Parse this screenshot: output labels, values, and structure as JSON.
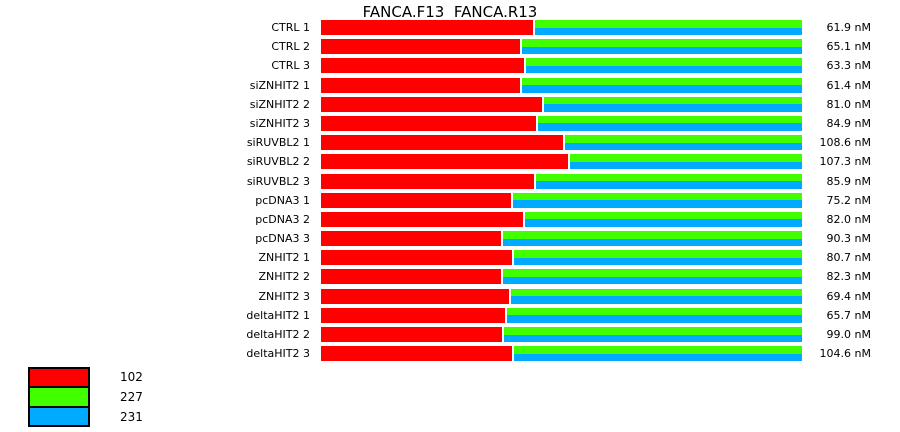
{
  "chart_data": {
    "type": "bar",
    "orientation": "horizontal-stacked",
    "title": "FANCA.F13  FANCA.R13",
    "unit": "nM",
    "grid": false,
    "legend_position": "bottom-left",
    "categories": [
      "CTRL 1",
      "CTRL 2",
      "CTRL 3",
      "siZNHIT2 1",
      "siZNHIT2 2",
      "siZNHIT2 3",
      "siRUVBL2 1",
      "siRUVBL2 2",
      "siRUVBL2 3",
      "pcDNA3 1",
      "pcDNA3 2",
      "pcDNA3 3",
      "ZNHIT2 1",
      "ZNHIT2 2",
      "ZNHIT2 3",
      "deltaHIT2 1",
      "deltaHIT2 2",
      "deltaHIT2 3"
    ],
    "values": [
      61.9,
      65.1,
      63.3,
      61.4,
      81.0,
      84.9,
      108.6,
      107.3,
      85.9,
      75.2,
      82.0,
      90.3,
      80.7,
      82.3,
      69.4,
      65.7,
      99.0,
      104.6
    ],
    "value_labels": [
      "61.9 nM",
      "65.1 nM",
      "63.3 nM",
      "61.4 nM",
      "81.0 nM",
      "84.9 nM",
      "108.6 nM",
      "107.3 nM",
      "85.9 nM",
      "75.2 nM",
      "82.0 nM",
      "90.3 nM",
      "80.7 nM",
      "82.3 nM",
      "69.4 nM",
      "65.7 nM",
      "99.0 nM",
      "104.6 nM"
    ],
    "red_segment_pct": [
      44.1,
      41.4,
      42.2,
      41.4,
      45.9,
      44.7,
      50.3,
      51.4,
      44.3,
      39.5,
      42.0,
      37.4,
      39.7,
      37.4,
      39.1,
      38.3,
      37.6,
      39.7
    ],
    "colors": {
      "red": "#FF0000",
      "green": "#42FF00",
      "blue": "#00AAFF"
    },
    "legend": {
      "entries": [
        {
          "label": "102",
          "color_key": "red"
        },
        {
          "label": "227",
          "color_key": "green"
        },
        {
          "label": "231",
          "color_key": "blue"
        }
      ]
    }
  }
}
